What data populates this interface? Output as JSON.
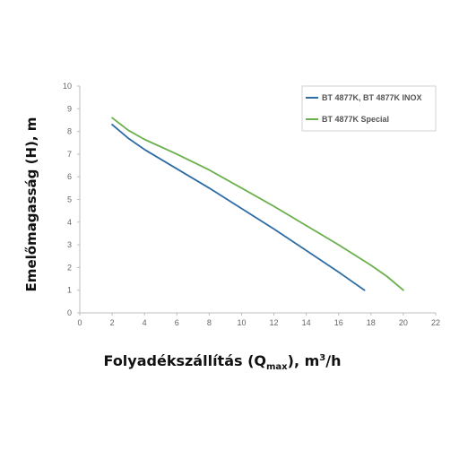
{
  "chart_data": {
    "type": "line",
    "xlabel": {
      "main": "Folyadékszállítás (Q",
      "sub": "max",
      "rest": "), m",
      "sup": "3",
      "end": "/h"
    },
    "ylabel": "Emelőmagasság (H), m",
    "xlim": [
      0,
      22
    ],
    "ylim": [
      0,
      10
    ],
    "x_ticks": [
      "0",
      "2",
      "4",
      "6",
      "8",
      "10",
      "12",
      "14",
      "16",
      "18",
      "20",
      "22"
    ],
    "y_ticks": [
      "0",
      "1",
      "2",
      "3",
      "4",
      "5",
      "6",
      "7",
      "8",
      "9",
      "10"
    ],
    "grid": false,
    "legend_position": "top-right",
    "series": [
      {
        "name": "BT 4877K, BT 4877K INOX",
        "color": "#2e6ca4",
        "x": [
          2,
          3,
          4,
          6,
          8,
          10,
          12,
          14,
          16,
          17.6
        ],
        "y": [
          8.3,
          7.7,
          7.2,
          6.35,
          5.5,
          4.6,
          3.7,
          2.75,
          1.8,
          1.0
        ]
      },
      {
        "name": "BT 4877K Special",
        "color": "#6ab04c",
        "x": [
          2,
          3,
          4,
          6,
          8,
          10,
          12,
          14,
          16,
          18,
          19,
          20
        ],
        "y": [
          8.6,
          8.05,
          7.65,
          7.0,
          6.3,
          5.5,
          4.7,
          3.85,
          3.0,
          2.1,
          1.6,
          1.0
        ]
      }
    ]
  }
}
